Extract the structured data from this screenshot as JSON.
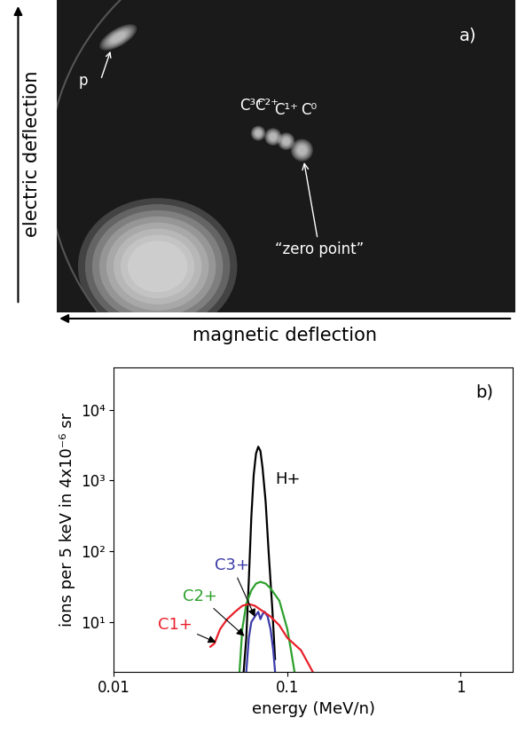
{
  "image": {
    "label": "a)",
    "y_axis_label": "electric deflection",
    "x_axis_label": "magnetic deflection",
    "spots": [
      "p",
      "C³⁺",
      "C²⁺",
      "C¹⁺",
      "C⁰"
    ],
    "zero_point_label": "“zero point”"
  },
  "chart_data": {
    "type": "line",
    "label": "b)",
    "x_label": "energy (MeV/n)",
    "y_label": "ions per 5 keV in 4x10⁻⁶ sr",
    "log": true,
    "grid": false,
    "xlim": [
      0.01,
      2
    ],
    "ylim": [
      2,
      40000
    ],
    "xticks": [
      0.01,
      0.1,
      1
    ],
    "yticks": [
      {
        "value": 10,
        "label": "10¹"
      },
      {
        "value": 100,
        "label": "10²"
      },
      {
        "value": 1000,
        "label": "10³"
      },
      {
        "value": 10000,
        "label": "10⁴"
      }
    ],
    "series": [
      {
        "name": "H+",
        "color": "#000000",
        "x": [
          0.056,
          0.058,
          0.06,
          0.062,
          0.064,
          0.066,
          0.068,
          0.07,
          0.072,
          0.075,
          0.078,
          0.082,
          0.085
        ],
        "values": [
          2,
          6,
          40,
          300,
          1200,
          2400,
          3000,
          2600,
          1500,
          500,
          100,
          15,
          3
        ]
      },
      {
        "name": "C3+",
        "color": "#3a3aa8",
        "x": [
          0.058,
          0.06,
          0.062,
          0.065,
          0.068,
          0.07,
          0.072,
          0.074,
          0.077,
          0.08,
          0.083,
          0.085
        ],
        "values": [
          2,
          6,
          10,
          12,
          14,
          11,
          13,
          14,
          12,
          8,
          4,
          2
        ]
      },
      {
        "name": "C2+",
        "color": "#2ca02c",
        "x": [
          0.053,
          0.055,
          0.058,
          0.062,
          0.066,
          0.07,
          0.075,
          0.08,
          0.09,
          0.1,
          0.105,
          0.11
        ],
        "values": [
          2,
          8,
          18,
          28,
          35,
          37,
          35,
          30,
          20,
          8,
          4,
          2
        ]
      },
      {
        "name": "C1+",
        "color": "#e8202a",
        "x": [
          0.036,
          0.038,
          0.041,
          0.045,
          0.05,
          0.055,
          0.06,
          0.065,
          0.07,
          0.08,
          0.09,
          0.1,
          0.12,
          0.14
        ],
        "values": [
          4.5,
          5,
          8,
          11,
          14,
          17,
          18,
          17,
          15,
          12,
          9,
          6,
          4,
          2
        ]
      }
    ]
  }
}
